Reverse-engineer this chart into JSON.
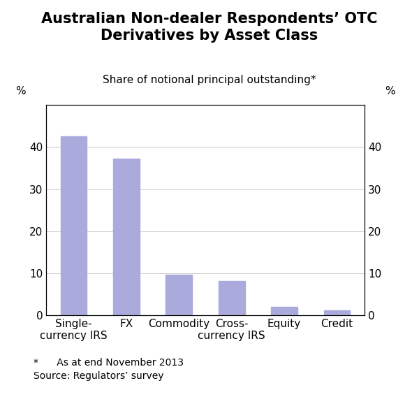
{
  "title": "Australian Non-dealer Respondents’ OTC\nDerivatives by Asset Class",
  "subtitle": "Share of notional principal outstanding*",
  "categories": [
    "Single-\ncurrency IRS",
    "FX",
    "Commodity",
    "Cross-\ncurrency IRS",
    "Equity",
    "Credit"
  ],
  "values": [
    42.5,
    37.3,
    9.6,
    8.1,
    2.0,
    1.1
  ],
  "bar_color": "#aaaadd",
  "ylim": [
    0,
    50
  ],
  "yticks": [
    0,
    10,
    20,
    30,
    40
  ],
  "ylabel_left": "%",
  "ylabel_right": "%",
  "footnote_line1": "*      As at end November 2013",
  "footnote_line2": "Source: Regulators’ survey",
  "title_fontsize": 15,
  "subtitle_fontsize": 11,
  "tick_fontsize": 11,
  "footnote_fontsize": 10,
  "bar_width": 0.5
}
